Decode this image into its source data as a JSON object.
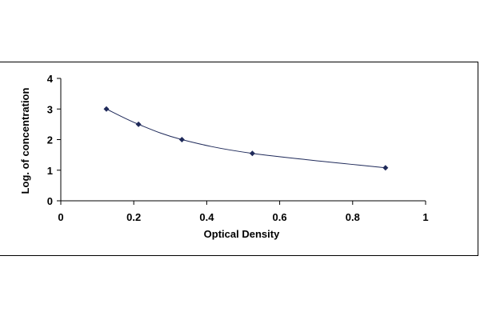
{
  "chart_data": {
    "type": "scatter",
    "title": "",
    "xlabel": "Optical Density",
    "ylabel": "Log. of concentration",
    "xlim": [
      0,
      1
    ],
    "ylim": [
      0,
      4
    ],
    "x_ticks": [
      "0",
      "0.2",
      "0.4",
      "0.6",
      "0.8",
      "1"
    ],
    "y_ticks": [
      "0",
      "1",
      "2",
      "3",
      "4"
    ],
    "grid": false,
    "legend": "none",
    "series": [
      {
        "points": [
          {
            "x": 0.125,
            "y": 3.0
          },
          {
            "x": 0.213,
            "y": 2.5
          },
          {
            "x": 0.332,
            "y": 2.0
          },
          {
            "x": 0.525,
            "y": 1.55
          },
          {
            "x": 0.89,
            "y": 1.08
          }
        ],
        "marker": "diamond",
        "smoothed_line": true,
        "color": "#1f2a5a"
      }
    ]
  }
}
